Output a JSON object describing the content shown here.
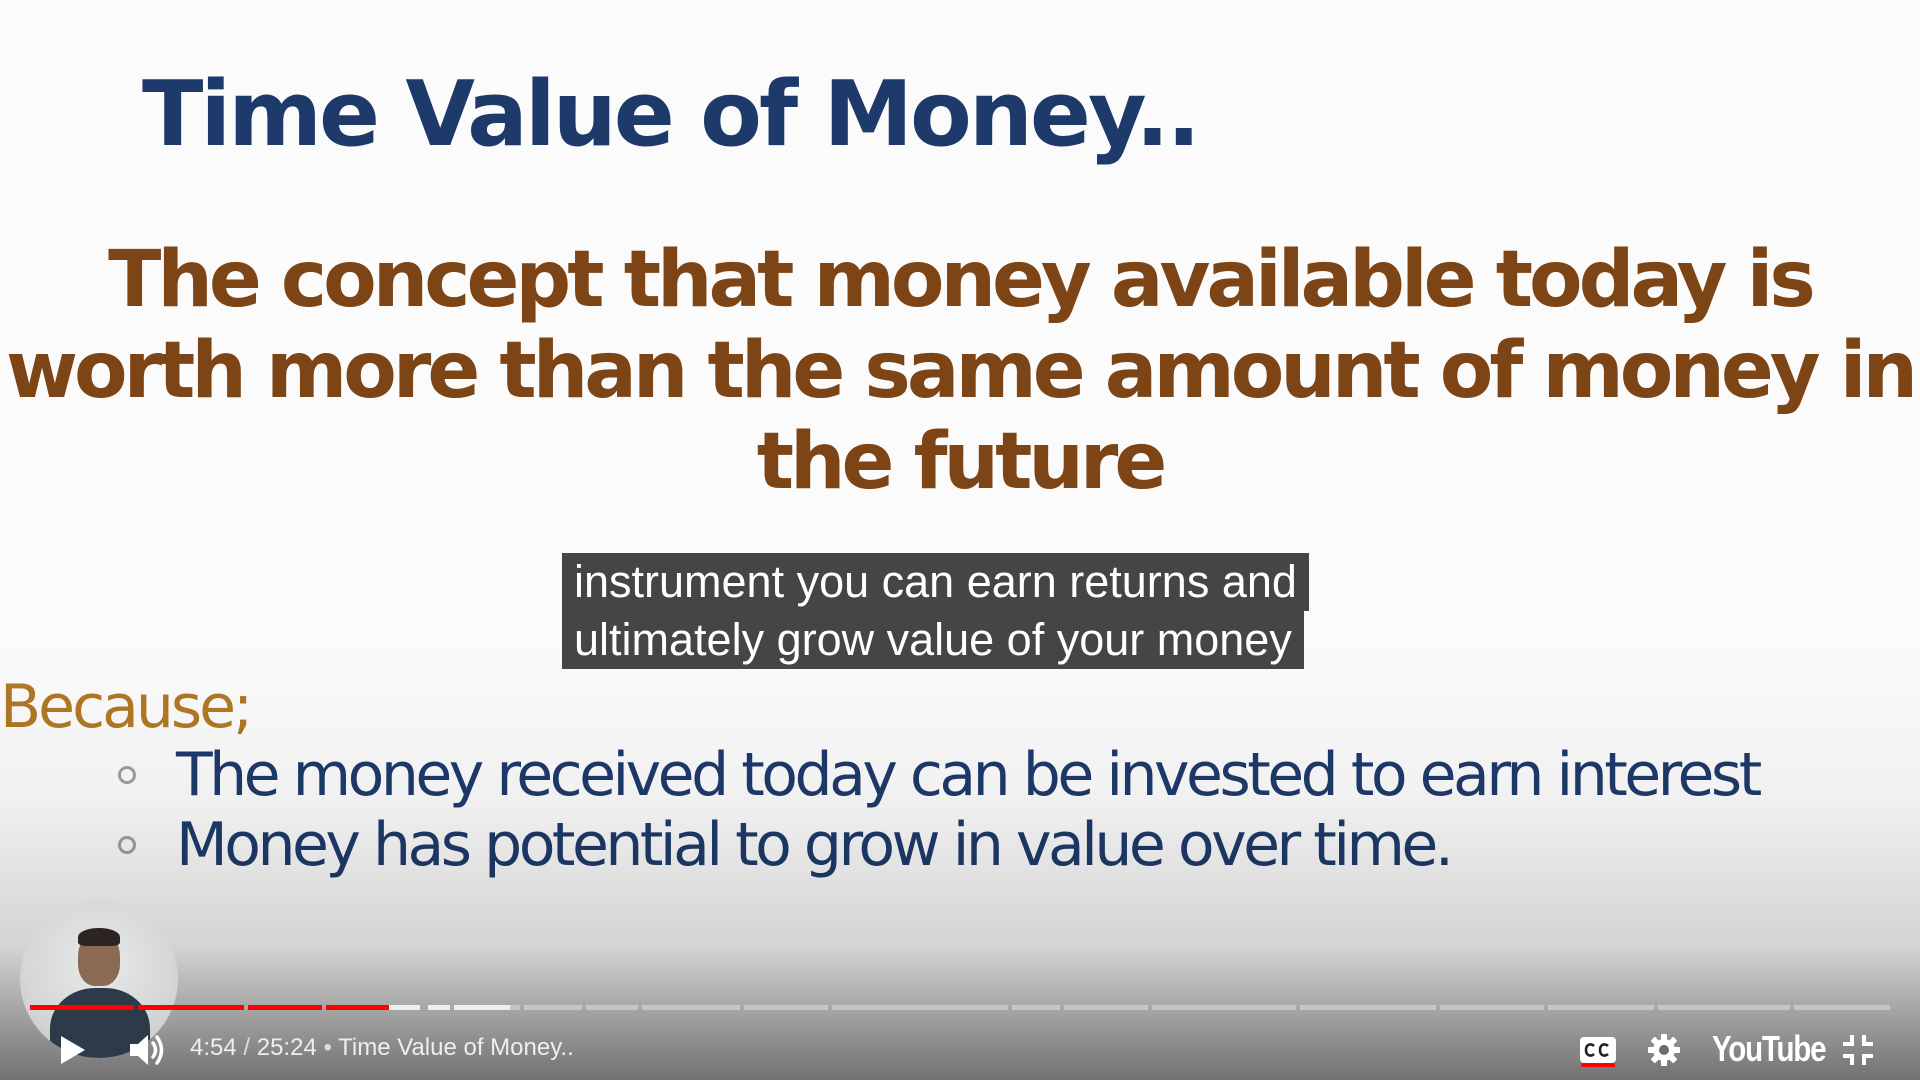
{
  "slide": {
    "title": "Time Value of Money..",
    "definition_lines": [
      "The concept that money available today is",
      "worth more than the same amount of money in",
      "the future"
    ],
    "because_label": "Because;",
    "bullets": [
      "The money received today can be invested to earn interest",
      "Money has potential to grow in value over time."
    ]
  },
  "captions": {
    "lines": [
      "instrument you can earn returns and",
      "ultimately grow value of your money"
    ]
  },
  "player": {
    "current_time": "4:54",
    "duration": "25:24",
    "time_separator": " / ",
    "title_separator": " • ",
    "video_title": "Time Value of Money..",
    "played_fraction": 0.193,
    "buffered_fraction": 0.258,
    "logo_text": "YouTube",
    "icons": {
      "play": "play-icon",
      "volume": "volume-icon",
      "captions": "captions-icon",
      "settings": "gear-icon",
      "fullscreen_exit": "exit-fullscreen-icon"
    },
    "colors": {
      "played": "#ff0000",
      "title": "#1e3a6b",
      "definition": "#7d4416",
      "because": "#b07824"
    }
  }
}
